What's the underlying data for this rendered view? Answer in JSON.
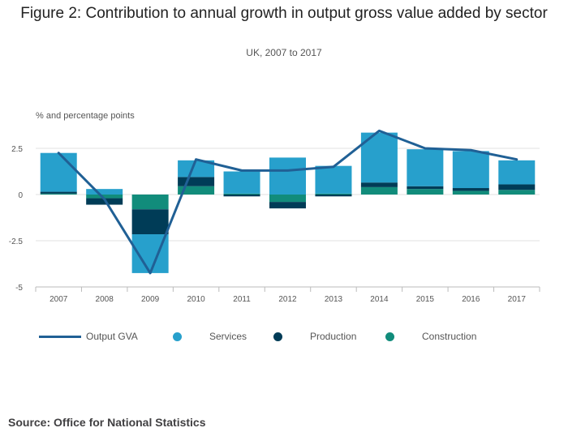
{
  "title": "Figure 2: Contribution to annual growth in output gross value added by sector",
  "subtitle": "UK, 2007 to 2017",
  "unit_label": "% and percentage points",
  "source": "Source: Office for National Statistics",
  "colors": {
    "output_gva": "#206095",
    "services": "#27a0cc",
    "production": "#003c57",
    "construction": "#118c7b",
    "grid": "#e0e0e0",
    "axis": "#bbbbbb",
    "tick_text": "#555555"
  },
  "chart_data": {
    "type": "bar",
    "stacked": true,
    "categories": [
      "2007",
      "2008",
      "2009",
      "2010",
      "2011",
      "2012",
      "2013",
      "2014",
      "2015",
      "2016",
      "2017"
    ],
    "series": [
      {
        "name": "Services",
        "values": [
          2.1,
          0.3,
          -2.1,
          0.9,
          1.2,
          2.0,
          1.5,
          2.7,
          2.0,
          2.0,
          1.3
        ]
      },
      {
        "name": "Production",
        "values": [
          0.1,
          -0.35,
          -1.35,
          0.5,
          -0.1,
          -0.35,
          -0.1,
          0.25,
          0.15,
          0.15,
          0.3
        ]
      },
      {
        "name": "Construction",
        "values": [
          0.05,
          -0.2,
          -0.8,
          0.45,
          0.05,
          -0.4,
          0.05,
          0.4,
          0.3,
          0.2,
          0.25
        ]
      }
    ],
    "line_series": {
      "name": "Output GVA",
      "values": [
        2.25,
        -0.25,
        -4.25,
        1.9,
        1.3,
        1.3,
        1.5,
        3.45,
        2.5,
        2.4,
        1.9
      ]
    },
    "y_ticks": [
      "2.5",
      "0",
      "-2.5",
      "-5"
    ],
    "y_tick_values": [
      2.5,
      0,
      -2.5,
      -5
    ],
    "ylim": [
      -5,
      3.5
    ],
    "grid": true,
    "legend_position": "bottom"
  },
  "legend": {
    "output_gva": "Output GVA",
    "services": "Services",
    "production": "Production",
    "construction": "Construction"
  }
}
